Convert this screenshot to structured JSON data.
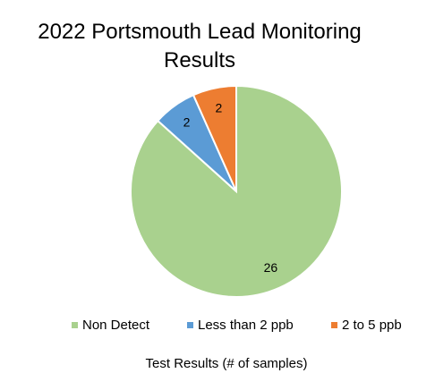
{
  "chart_data": {
    "type": "pie",
    "title": "2022 Portsmouth Lead Monitoring Results",
    "xlabel": "Test Results (# of samples)",
    "categories": [
      "Non Detect",
      "Less than 2 ppb",
      "2 to 5 ppb"
    ],
    "values": [
      26,
      2,
      2
    ],
    "colors": [
      "#a9d18e",
      "#5b9bd5",
      "#ed7d31"
    ],
    "legend": "bottom"
  }
}
